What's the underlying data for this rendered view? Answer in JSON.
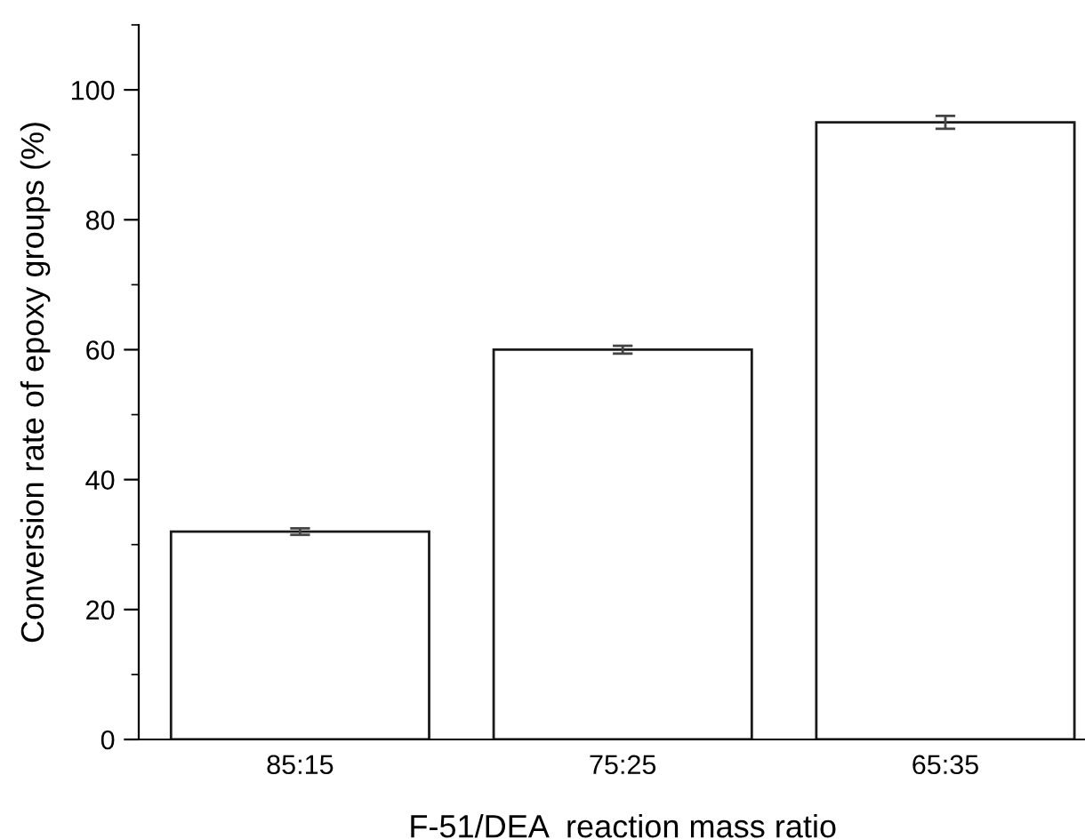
{
  "chart_data": {
    "type": "bar",
    "xlabel": "F-51/DEA  reaction mass ratio",
    "ylabel": "Conversion rate of epoxy groups (%)",
    "categories": [
      "85:15",
      "75:25",
      "65:35"
    ],
    "values": [
      32,
      60,
      95
    ],
    "errors": [
      0.5,
      0.6,
      1.0
    ],
    "color": "#ffffff",
    "ylim": [
      0,
      110
    ],
    "yticks": [
      0,
      20,
      40,
      60,
      80,
      100
    ],
    "grid": false,
    "legend": false
  }
}
